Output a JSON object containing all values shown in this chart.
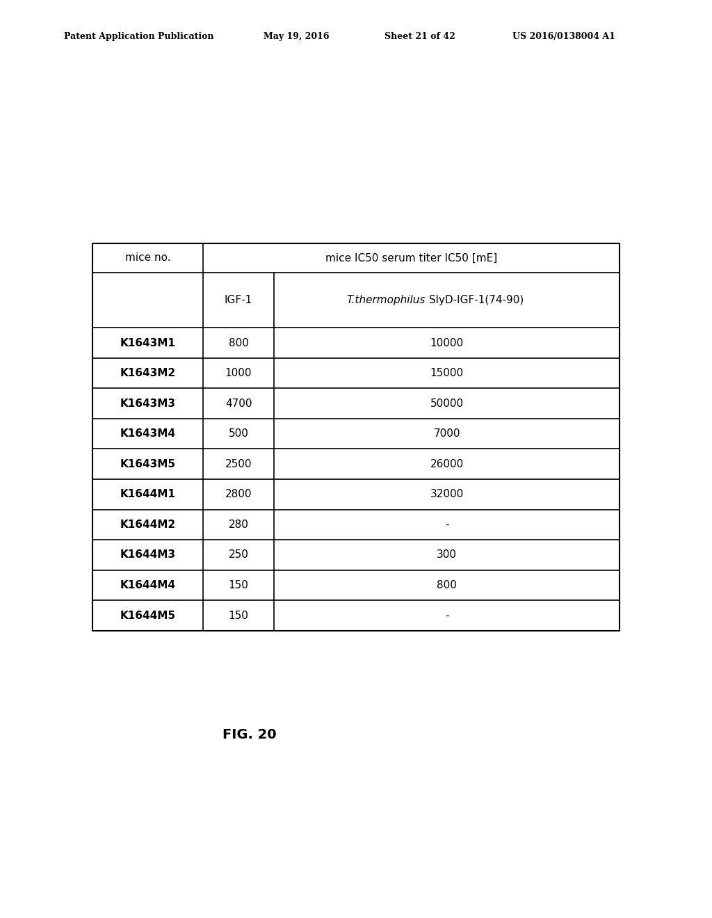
{
  "header_line1": "Patent Application Publication",
  "header_date": "May 19, 2016",
  "header_sheet": "Sheet 21 of 42",
  "header_patent": "US 2016/0138004 A1",
  "figure_label": "FIG. 20",
  "col0_header": "mice no.",
  "col1_header": "IGF-1",
  "col2_header_italic": "T.thermophilus",
  "col2_header_normal": " SlyD-IGF-1(74-90)",
  "top_header_span": "mice IC50 serum titer IC50 [mE]",
  "rows": [
    [
      "K1643M1",
      "800",
      "10000"
    ],
    [
      "K1643M2",
      "1000",
      "15000"
    ],
    [
      "K1643M3",
      "4700",
      "50000"
    ],
    [
      "K1643M4",
      "500",
      "7000"
    ],
    [
      "K1643M5",
      "2500",
      "26000"
    ],
    [
      "K1644M1",
      "2800",
      "32000"
    ],
    [
      "K1644M2",
      "280",
      "-"
    ],
    [
      "K1644M3",
      "250",
      "300"
    ],
    [
      "K1644M4",
      "150",
      "800"
    ],
    [
      "K1644M5",
      "150",
      "-"
    ]
  ],
  "bg_color": "#ffffff",
  "text_color": "#000000",
  "border_color": "#000000",
  "header_fontsize": 9,
  "table_fontsize": 11
}
